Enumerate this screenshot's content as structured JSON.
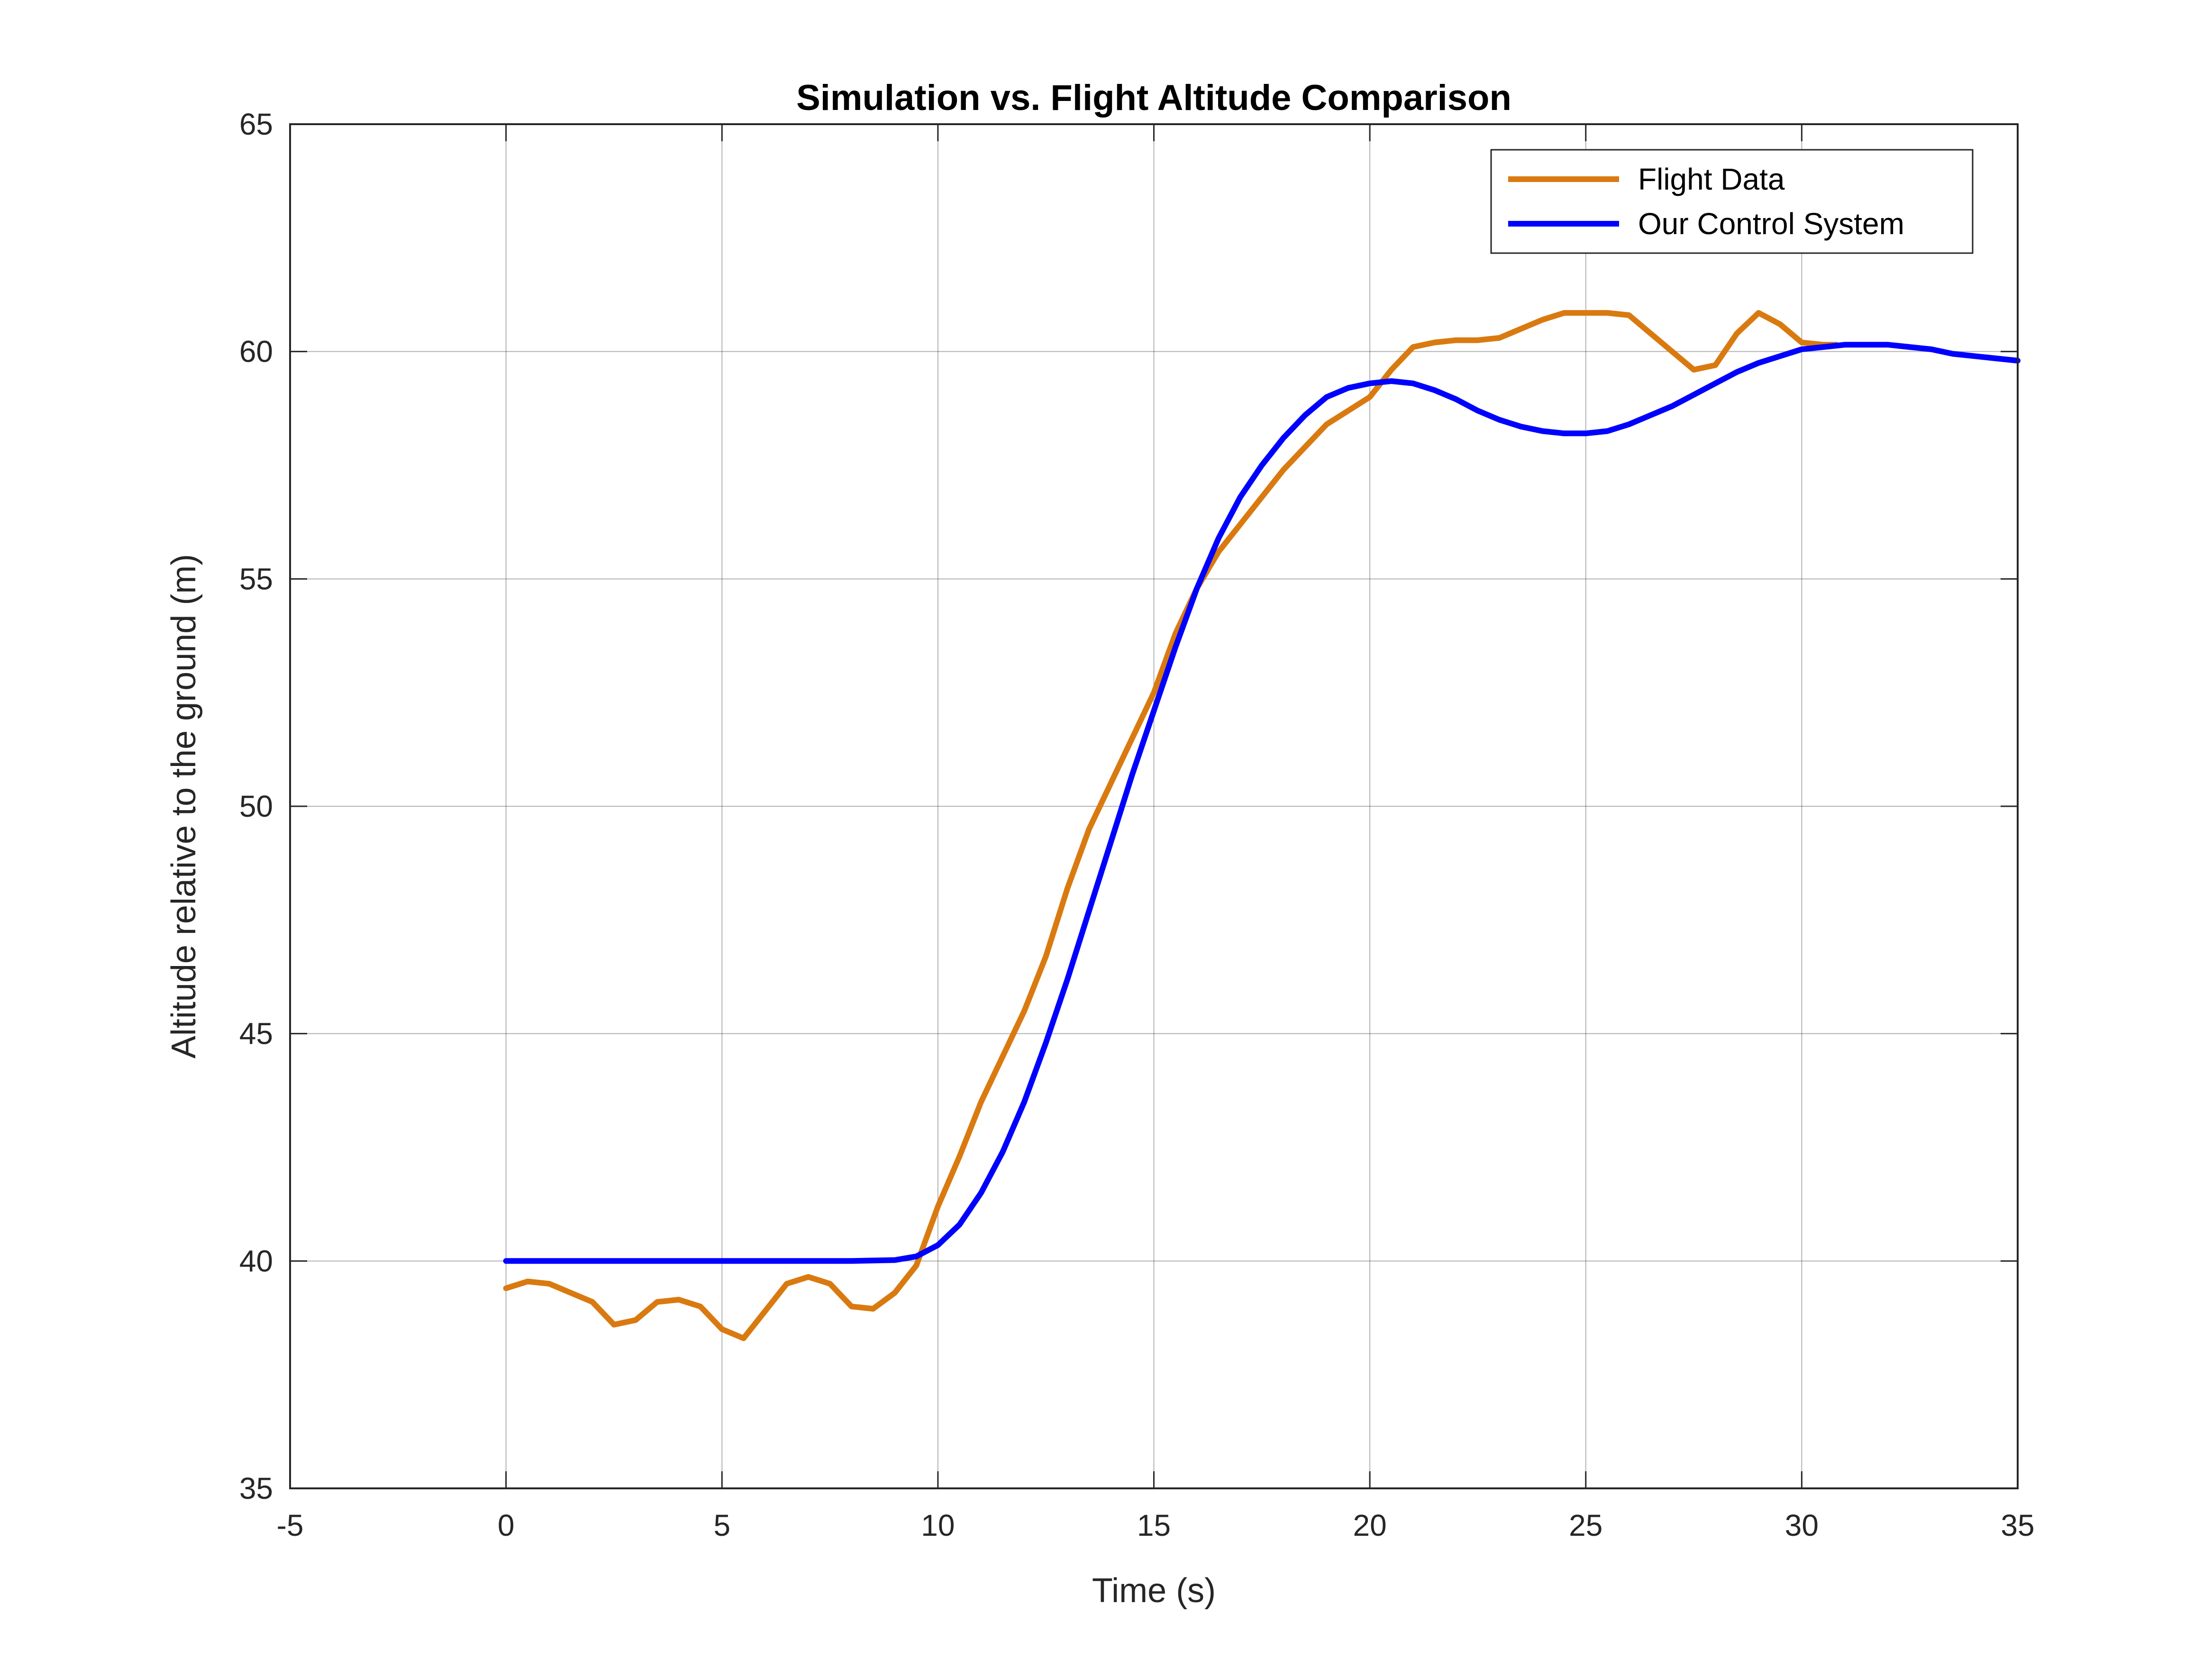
{
  "chart_data": {
    "type": "line",
    "title": "Simulation vs. Flight Altitude Comparison",
    "xlabel": "Time (s)",
    "ylabel": "Altitude relative to the ground (m)",
    "xlim": [
      -5,
      35
    ],
    "ylim": [
      35,
      65
    ],
    "xticks": [
      "-5",
      "0",
      "5",
      "10",
      "15",
      "20",
      "25",
      "30",
      "35"
    ],
    "yticks": [
      "35",
      "40",
      "45",
      "50",
      "55",
      "60",
      "65"
    ],
    "grid": true,
    "legend_position": "top-right",
    "series": [
      {
        "name": "Flight Data",
        "color": "#D97A10",
        "x": [
          0,
          0.5,
          1,
          1.5,
          2,
          2.5,
          3,
          3.5,
          4,
          4.5,
          5,
          5.5,
          6,
          6.5,
          7,
          7.5,
          8,
          8.5,
          9,
          9.5,
          10,
          10.5,
          11,
          11.5,
          12,
          12.5,
          13,
          13.5,
          14,
          14.5,
          15,
          15.5,
          16,
          16.5,
          17,
          17.5,
          18,
          18.5,
          19,
          19.5,
          20,
          20.5,
          21,
          21.5,
          22,
          22.5,
          23,
          23.5,
          24,
          24.5,
          25,
          25.5,
          26,
          26.5,
          27,
          27.5,
          28,
          28.5,
          29,
          29.5,
          30,
          30.5,
          30.8
        ],
        "y": [
          39.4,
          39.55,
          39.5,
          39.3,
          39.1,
          38.6,
          38.7,
          39.1,
          39.15,
          39.0,
          38.5,
          38.3,
          38.9,
          39.5,
          39.65,
          39.5,
          39.0,
          38.95,
          39.3,
          39.9,
          41.2,
          42.3,
          43.5,
          44.5,
          45.5,
          46.7,
          48.2,
          49.5,
          50.5,
          51.5,
          52.5,
          53.8,
          54.8,
          55.6,
          56.2,
          56.8,
          57.4,
          57.9,
          58.4,
          58.7,
          59.0,
          59.6,
          60.1,
          60.2,
          60.25,
          60.25,
          60.3,
          60.5,
          60.7,
          60.85,
          60.85,
          60.85,
          60.8,
          60.4,
          60.0,
          59.6,
          59.7,
          60.4,
          60.85,
          60.6,
          60.2,
          60.15,
          60.15
        ]
      },
      {
        "name": "Our Control System",
        "color": "#0000FF",
        "x": [
          0,
          2,
          4,
          6,
          8,
          9,
          9.5,
          10,
          10.5,
          11,
          11.5,
          12,
          12.5,
          13,
          13.5,
          14,
          14.5,
          15,
          15.5,
          16,
          16.5,
          17,
          17.5,
          18,
          18.5,
          19,
          19.5,
          20,
          20.5,
          21,
          21.5,
          22,
          22.5,
          23,
          23.5,
          24,
          24.5,
          25,
          25.5,
          26,
          26.5,
          27,
          27.5,
          28,
          28.5,
          29,
          29.5,
          30,
          30.5,
          31,
          31.5,
          32,
          32.5,
          33,
          33.5,
          34,
          34.5,
          35
        ],
        "y": [
          40,
          40,
          40,
          40,
          40,
          40.02,
          40.1,
          40.35,
          40.8,
          41.5,
          42.4,
          43.5,
          44.8,
          46.2,
          47.7,
          49.2,
          50.7,
          52.1,
          53.5,
          54.8,
          55.9,
          56.8,
          57.5,
          58.1,
          58.6,
          59.0,
          59.2,
          59.3,
          59.35,
          59.3,
          59.15,
          58.95,
          58.7,
          58.5,
          58.35,
          58.25,
          58.2,
          58.2,
          58.25,
          58.4,
          58.6,
          58.8,
          59.05,
          59.3,
          59.55,
          59.75,
          59.9,
          60.05,
          60.1,
          60.15,
          60.15,
          60.15,
          60.1,
          60.05,
          59.95,
          59.9,
          59.85,
          59.8
        ]
      }
    ]
  }
}
